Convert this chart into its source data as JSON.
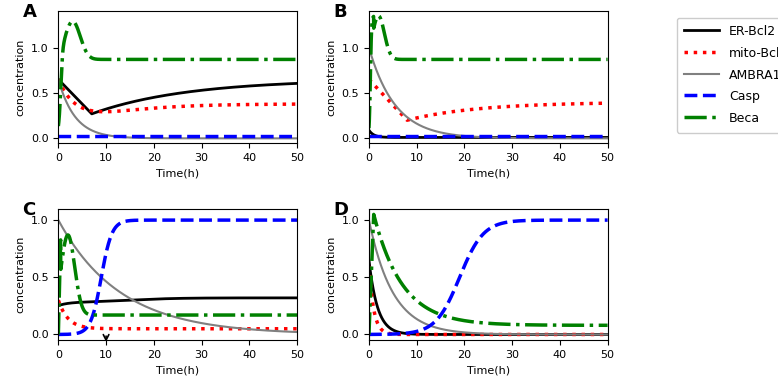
{
  "panels": [
    "A",
    "B",
    "C",
    "D"
  ],
  "legend_labels": [
    "ER-Bcl2",
    "mito-Bcl2",
    "AMBRA1",
    "Casp",
    "Beca"
  ],
  "line_styles": [
    {
      "color": "black",
      "ls": "-",
      "lw": 2.0
    },
    {
      "color": "red",
      "ls": ":",
      "lw": 2.5
    },
    {
      "color": "gray",
      "ls": "-",
      "lw": 1.5
    },
    {
      "color": "blue",
      "ls": "--",
      "lw": 2.5
    },
    {
      "color": "green",
      "ls": "-.",
      "lw": 2.5
    }
  ],
  "xlabel": "Time(h)",
  "ylabel": "concentration",
  "xlim": [
    0,
    50
  ],
  "ylim_AB": [
    -0.05,
    1.4
  ],
  "ylim_CD": [
    -0.05,
    1.1
  ],
  "yticks": [
    0,
    0.5,
    1.0
  ],
  "xticks": [
    0,
    10,
    20,
    30,
    40,
    50
  ],
  "panel_label_fontsize": 13,
  "axis_label_fontsize": 8,
  "tick_fontsize": 8,
  "legend_fontsize": 9
}
